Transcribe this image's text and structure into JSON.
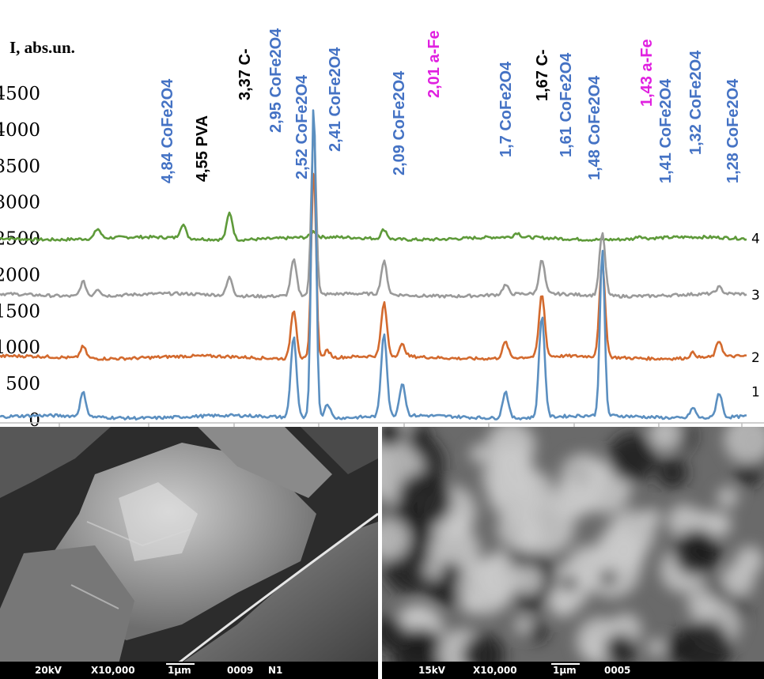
{
  "chart_data": {
    "type": "line",
    "title": "",
    "ylabel": "I, abs.un.",
    "xlabel": "",
    "ylim": [
      0,
      4500
    ],
    "yticks": [
      "0",
      "500",
      "1000",
      "1500",
      "2000",
      "2500",
      "3000",
      "3500",
      "4000",
      "4500"
    ],
    "peak_labels": [
      {
        "text": "4,84 CoFe2O4",
        "color": "#4472c4",
        "x": 4.84
      },
      {
        "text": "4,55 PVA",
        "color": "#000000",
        "x": 4.55
      },
      {
        "text": "3,37 C-",
        "color": "#000000",
        "x": 3.37
      },
      {
        "text": "2,95 CoFe2O4",
        "color": "#4472c4",
        "x": 2.95
      },
      {
        "text": "2,52 CoFe2O4",
        "color": "#4472c4",
        "x": 2.52
      },
      {
        "text": "2,41 CoFe2O4",
        "color": "#4472c4",
        "x": 2.41
      },
      {
        "text": "2,09 CoFe2O4",
        "color": "#4472c4",
        "x": 2.09
      },
      {
        "text": "2,01 a-Fe",
        "color": "#e020e0",
        "x": 2.01
      },
      {
        "text": "1,7 CoFe2O4",
        "color": "#4472c4",
        "x": 1.7
      },
      {
        "text": "1,67 C-",
        "color": "#000000",
        "x": 1.67
      },
      {
        "text": "1,61 CoFe2O4",
        "color": "#4472c4",
        "x": 1.61
      },
      {
        "text": "1,48 CoFe2O4",
        "color": "#4472c4",
        "x": 1.48
      },
      {
        "text": "1,43 a-Fe",
        "color": "#e020e0",
        "x": 1.43
      },
      {
        "text": "1,41 CoFe2O4",
        "color": "#4472c4",
        "x": 1.41
      },
      {
        "text": "1,32 CoFe2O4",
        "color": "#4472c4",
        "x": 1.32
      },
      {
        "text": "1,28 CoFe2O4",
        "color": "#4472c4",
        "x": 1.28
      }
    ],
    "series": [
      {
        "name": "1",
        "color": "#5b8fc0",
        "baseline": 40,
        "peaks": [
          [
            4.84,
            330
          ],
          [
            2.52,
            1120
          ],
          [
            2.41,
            4330
          ],
          [
            2.34,
            200
          ],
          [
            2.09,
            1150
          ],
          [
            2.02,
            450
          ],
          [
            1.7,
            370
          ],
          [
            1.61,
            1400
          ],
          [
            1.48,
            2280
          ],
          [
            1.32,
            140
          ],
          [
            1.28,
            340
          ]
        ]
      },
      {
        "name": "2",
        "color": "#d36a2e",
        "baseline": 860,
        "peaks": [
          [
            4.84,
            160
          ],
          [
            2.52,
            680
          ],
          [
            2.41,
            2620
          ],
          [
            2.34,
            100
          ],
          [
            2.09,
            730
          ],
          [
            2.02,
            160
          ],
          [
            1.7,
            220
          ],
          [
            1.61,
            860
          ],
          [
            1.48,
            1290
          ],
          [
            1.32,
            70
          ],
          [
            1.28,
            220
          ]
        ]
      },
      {
        "name": "3",
        "color": "#9a9a9a",
        "baseline": 1720,
        "peaks": [
          [
            4.84,
            200
          ],
          [
            4.55,
            100
          ],
          [
            2.95,
            250
          ],
          [
            2.52,
            490
          ],
          [
            2.41,
            2320
          ],
          [
            2.09,
            450
          ],
          [
            1.7,
            130
          ],
          [
            1.61,
            460
          ],
          [
            1.48,
            860
          ],
          [
            1.28,
            90
          ]
        ]
      },
      {
        "name": "4",
        "color": "#5e9a3a",
        "baseline": 2500,
        "peaks": [
          [
            4.55,
            130
          ],
          [
            3.37,
            190
          ],
          [
            2.95,
            370
          ],
          [
            2.41,
            80
          ],
          [
            2.09,
            130
          ],
          [
            1.67,
            60
          ],
          [
            1.41,
            40
          ]
        ]
      }
    ]
  },
  "sem_images": [
    {
      "info": [
        "20kV",
        "X10,000",
        "1µm",
        "0009",
        "N1"
      ]
    },
    {
      "info": [
        "15kV",
        "X10,000",
        "1µm",
        "0005",
        ""
      ]
    }
  ]
}
